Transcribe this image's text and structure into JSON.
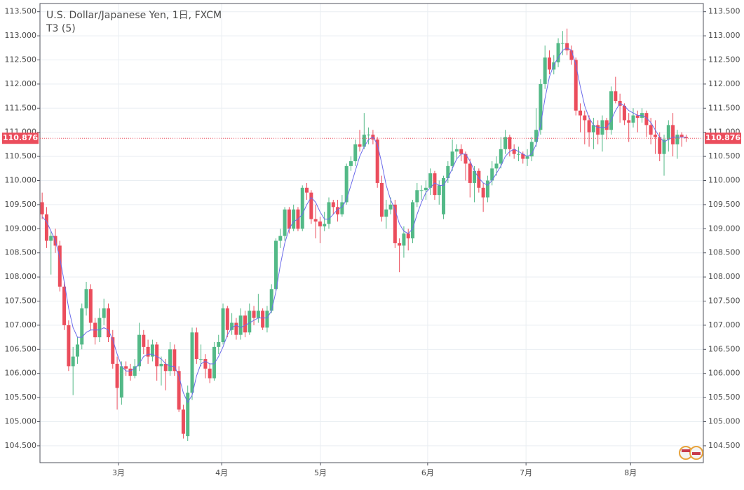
{
  "chart_data": {
    "type": "candlestick",
    "title": "U.S. Dollar/Japanese Yen, 1日, FXCM",
    "indicator": {
      "name": "T3 (5)",
      "color": "#6b6bea"
    },
    "up_color": "#53b987",
    "down_color": "#eb4d5c",
    "xlim": [
      -0.5,
      149.9
    ],
    "xticks": [
      {
        "value": 17.3,
        "label": "3月"
      },
      {
        "value": 40.7,
        "label": "4月"
      },
      {
        "value": 63.1,
        "label": "5月"
      },
      {
        "value": 87.4,
        "label": "6月"
      },
      {
        "value": 109.7,
        "label": "7月"
      },
      {
        "value": 133.4,
        "label": "8月"
      }
    ],
    "ylim": [
      104.15,
      113.67
    ],
    "yticks": [
      {
        "value": 104.5,
        "label": "104.500"
      },
      {
        "value": 105,
        "label": "105.000"
      },
      {
        "value": 105.5,
        "label": "105.500"
      },
      {
        "value": 106,
        "label": "106.000"
      },
      {
        "value": 106.5,
        "label": "106.500"
      },
      {
        "value": 107,
        "label": "107.000"
      },
      {
        "value": 107.5,
        "label": "107.500"
      },
      {
        "value": 108,
        "label": "108.000"
      },
      {
        "value": 108.5,
        "label": "108.500"
      },
      {
        "value": 109,
        "label": "109.000"
      },
      {
        "value": 109.5,
        "label": "109.500"
      },
      {
        "value": 110,
        "label": "110.000"
      },
      {
        "value": 110.5,
        "label": "110.500"
      },
      {
        "value": 111,
        "label": "111.000"
      },
      {
        "value": 111.5,
        "label": "111.500"
      },
      {
        "value": 112,
        "label": "112.000"
      },
      {
        "value": 112.5,
        "label": "112.500"
      },
      {
        "value": 113,
        "label": "113.000"
      },
      {
        "value": 113.5,
        "label": "113.500"
      }
    ],
    "grid": true,
    "last_price": {
      "value": 110.876,
      "label": "110.876",
      "color": "#eb4d5c"
    },
    "ohlc": [
      [
        109.55,
        109.75,
        109.2,
        109.3
      ],
      [
        109.3,
        109.45,
        108.6,
        108.75
      ],
      [
        108.75,
        108.95,
        108.05,
        108.85
      ],
      [
        108.85,
        109.0,
        108.5,
        108.65
      ],
      [
        108.65,
        108.75,
        107.7,
        107.8
      ],
      [
        107.8,
        107.9,
        106.9,
        107.0
      ],
      [
        107.0,
        107.1,
        106.05,
        106.15
      ],
      [
        106.15,
        106.55,
        105.55,
        106.35
      ],
      [
        106.35,
        106.75,
        106.2,
        106.6
      ],
      [
        106.6,
        107.45,
        106.5,
        107.35
      ],
      [
        107.35,
        107.9,
        107.2,
        107.75
      ],
      [
        107.75,
        107.85,
        106.9,
        107.05
      ],
      [
        107.05,
        107.15,
        106.6,
        106.75
      ],
      [
        106.75,
        107.35,
        106.65,
        107.15
      ],
      [
        107.15,
        107.55,
        107.0,
        107.35
      ],
      [
        107.35,
        107.45,
        106.65,
        106.75
      ],
      [
        106.75,
        106.9,
        106.1,
        106.2
      ],
      [
        106.2,
        106.35,
        105.25,
        105.7
      ],
      [
        105.5,
        106.25,
        105.35,
        106.15
      ],
      [
        106.15,
        106.25,
        105.95,
        106.1
      ],
      [
        106.1,
        106.2,
        105.85,
        105.95
      ],
      [
        105.95,
        106.3,
        105.9,
        106.15
      ],
      [
        106.15,
        107.05,
        106.05,
        106.8
      ],
      [
        106.8,
        106.9,
        106.4,
        106.55
      ],
      [
        106.55,
        106.7,
        106.2,
        106.35
      ],
      [
        106.35,
        106.7,
        106.25,
        106.6
      ],
      [
        106.6,
        106.65,
        105.85,
        106.15
      ],
      [
        106.15,
        106.35,
        105.75,
        106.2
      ],
      [
        106.2,
        106.3,
        105.65,
        106.05
      ],
      [
        106.05,
        106.65,
        105.95,
        106.5
      ],
      [
        106.5,
        106.6,
        105.95,
        106.05
      ],
      [
        106.05,
        106.15,
        105.2,
        105.25
      ],
      [
        105.25,
        105.35,
        104.65,
        104.75
      ],
      [
        104.7,
        105.75,
        104.6,
        105.6
      ],
      [
        105.6,
        106.95,
        105.45,
        106.85
      ],
      [
        106.85,
        106.95,
        106.2,
        106.3
      ],
      [
        106.3,
        106.6,
        106.15,
        106.3
      ],
      [
        106.3,
        106.4,
        105.9,
        106.1
      ],
      [
        106.1,
        106.2,
        105.8,
        105.9
      ],
      [
        105.9,
        106.65,
        105.85,
        106.55
      ],
      [
        106.55,
        106.8,
        106.4,
        106.65
      ],
      [
        106.65,
        107.45,
        106.6,
        107.35
      ],
      [
        107.35,
        107.4,
        106.75,
        106.9
      ],
      [
        106.9,
        107.25,
        106.8,
        107.05
      ],
      [
        107.05,
        107.15,
        106.7,
        106.8
      ],
      [
        106.8,
        107.35,
        106.7,
        107.2
      ],
      [
        107.2,
        107.3,
        106.75,
        106.85
      ],
      [
        106.85,
        107.45,
        106.8,
        107.3
      ],
      [
        107.3,
        107.4,
        107.0,
        107.15
      ],
      [
        107.15,
        107.65,
        107.05,
        107.3
      ],
      [
        107.3,
        107.35,
        106.9,
        106.95
      ],
      [
        106.95,
        107.4,
        106.85,
        107.3
      ],
      [
        107.3,
        107.85,
        107.25,
        107.75
      ],
      [
        107.75,
        108.8,
        107.7,
        108.75
      ],
      [
        108.75,
        109.0,
        108.6,
        108.85
      ],
      [
        108.85,
        109.45,
        108.75,
        109.4
      ],
      [
        109.4,
        109.45,
        108.9,
        109.0
      ],
      [
        109.0,
        109.5,
        108.95,
        109.4
      ],
      [
        109.4,
        109.45,
        108.95,
        109.0
      ],
      [
        109.0,
        109.9,
        108.95,
        109.85
      ],
      [
        109.85,
        109.95,
        109.6,
        109.75
      ],
      [
        109.75,
        109.8,
        109.1,
        109.2
      ],
      [
        109.2,
        109.5,
        108.8,
        109.15
      ],
      [
        109.15,
        109.25,
        108.7,
        109.05
      ],
      [
        109.05,
        109.35,
        108.95,
        109.1
      ],
      [
        109.1,
        109.65,
        109.0,
        109.55
      ],
      [
        109.55,
        109.6,
        109.3,
        109.45
      ],
      [
        109.45,
        109.6,
        109.15,
        109.3
      ],
      [
        109.3,
        109.7,
        109.25,
        109.55
      ],
      [
        109.55,
        110.35,
        109.5,
        110.3
      ],
      [
        110.3,
        110.5,
        110.2,
        110.4
      ],
      [
        110.4,
        110.85,
        110.3,
        110.75
      ],
      [
        110.75,
        111.05,
        110.6,
        110.7
      ],
      [
        110.7,
        111.4,
        110.65,
        110.95
      ],
      [
        110.95,
        111.1,
        110.75,
        110.95
      ],
      [
        110.95,
        111.05,
        110.75,
        110.85
      ],
      [
        110.85,
        110.9,
        109.85,
        109.95
      ],
      [
        109.95,
        110.1,
        109.15,
        109.25
      ],
      [
        109.25,
        109.6,
        109.0,
        109.4
      ],
      [
        109.4,
        109.65,
        109.3,
        109.5
      ],
      [
        109.5,
        109.6,
        108.6,
        108.7
      ],
      [
        108.7,
        108.8,
        108.1,
        108.65
      ],
      [
        108.65,
        109.05,
        108.4,
        108.9
      ],
      [
        108.9,
        109.0,
        108.55,
        108.8
      ],
      [
        108.8,
        109.6,
        108.7,
        109.55
      ],
      [
        109.55,
        109.95,
        109.45,
        109.8
      ],
      [
        109.8,
        109.9,
        109.6,
        109.8
      ],
      [
        109.8,
        110.0,
        109.6,
        109.85
      ],
      [
        109.85,
        110.25,
        109.7,
        110.15
      ],
      [
        110.15,
        110.2,
        109.6,
        109.7
      ],
      [
        109.7,
        110.0,
        109.5,
        109.9
      ],
      [
        109.3,
        110.1,
        109.2,
        110.05
      ],
      [
        110.05,
        110.4,
        109.95,
        110.3
      ],
      [
        110.3,
        110.85,
        110.2,
        110.6
      ],
      [
        110.6,
        110.75,
        110.45,
        110.65
      ],
      [
        110.65,
        110.75,
        110.4,
        110.55
      ],
      [
        110.55,
        110.6,
        110.0,
        110.35
      ],
      [
        110.35,
        110.45,
        109.65,
        109.95
      ],
      [
        109.95,
        110.3,
        109.55,
        110.2
      ],
      [
        110.2,
        110.25,
        109.75,
        109.85
      ],
      [
        109.85,
        109.95,
        109.35,
        109.65
      ],
      [
        109.65,
        110.1,
        109.55,
        110.0
      ],
      [
        110.0,
        110.4,
        109.9,
        110.25
      ],
      [
        110.25,
        110.5,
        110.1,
        110.35
      ],
      [
        110.35,
        110.9,
        110.25,
        110.65
      ],
      [
        110.65,
        111.05,
        110.55,
        110.9
      ],
      [
        110.9,
        110.95,
        110.5,
        110.65
      ],
      [
        110.65,
        110.75,
        110.45,
        110.55
      ],
      [
        110.55,
        110.7,
        110.4,
        110.55
      ],
      [
        110.55,
        110.6,
        110.35,
        110.45
      ],
      [
        110.45,
        110.65,
        110.3,
        110.5
      ],
      [
        110.5,
        110.9,
        110.4,
        110.8
      ],
      [
        110.8,
        111.5,
        110.7,
        111.05
      ],
      [
        111.05,
        112.1,
        110.95,
        112.0
      ],
      [
        112.0,
        112.8,
        111.9,
        112.55
      ],
      [
        112.55,
        112.7,
        112.2,
        112.3
      ],
      [
        112.3,
        112.6,
        112.2,
        112.45
      ],
      [
        112.45,
        112.95,
        112.35,
        112.85
      ],
      [
        112.85,
        113.1,
        112.6,
        112.85
      ],
      [
        112.85,
        113.15,
        112.6,
        112.7
      ],
      [
        112.7,
        112.8,
        112.4,
        112.5
      ],
      [
        112.5,
        112.55,
        111.35,
        111.45
      ],
      [
        111.45,
        111.6,
        111.0,
        111.35
      ],
      [
        111.35,
        111.45,
        110.75,
        111.25
      ],
      [
        111.25,
        111.35,
        110.7,
        111.0
      ],
      [
        111.0,
        111.3,
        110.65,
        111.15
      ],
      [
        111.15,
        111.25,
        110.75,
        110.95
      ],
      [
        110.95,
        111.35,
        110.6,
        111.25
      ],
      [
        111.25,
        111.3,
        110.85,
        111.05
      ],
      [
        111.05,
        111.95,
        110.95,
        111.85
      ],
      [
        111.85,
        112.15,
        111.6,
        111.65
      ],
      [
        111.65,
        111.8,
        111.2,
        111.55
      ],
      [
        111.55,
        111.6,
        111.15,
        111.25
      ],
      [
        111.25,
        111.4,
        110.8,
        111.2
      ],
      [
        111.2,
        111.5,
        111.1,
        111.35
      ],
      [
        111.35,
        111.45,
        111.0,
        111.3
      ],
      [
        111.3,
        111.5,
        111.2,
        111.4
      ],
      [
        111.4,
        111.45,
        110.9,
        111.15
      ],
      [
        111.15,
        111.3,
        110.75,
        110.95
      ],
      [
        110.95,
        111.25,
        110.55,
        110.9
      ],
      [
        110.9,
        111.0,
        110.4,
        110.55
      ],
      [
        110.55,
        110.95,
        110.1,
        110.85
      ],
      [
        110.85,
        111.25,
        110.6,
        111.15
      ],
      [
        111.15,
        111.4,
        110.5,
        110.75
      ],
      [
        110.75,
        111.05,
        110.45,
        110.95
      ],
      [
        110.95,
        111.0,
        110.7,
        110.9
      ],
      [
        110.9,
        110.95,
        110.8,
        110.876
      ]
    ],
    "t3": [
      109.25,
      109.15,
      108.95,
      108.75,
      108.4,
      107.9,
      107.35,
      106.95,
      106.75,
      106.75,
      106.85,
      106.9,
      106.9,
      106.9,
      106.95,
      106.9,
      106.7,
      106.4,
      106.15,
      106.05,
      106.05,
      106.1,
      106.2,
      106.35,
      106.4,
      106.4,
      106.35,
      106.3,
      106.2,
      106.15,
      106.15,
      105.95,
      105.6,
      105.4,
      105.55,
      105.95,
      106.2,
      106.25,
      106.2,
      106.2,
      106.35,
      106.55,
      106.8,
      106.95,
      107.0,
      106.95,
      107.0,
      107.05,
      107.1,
      107.15,
      107.15,
      107.15,
      107.3,
      107.7,
      108.25,
      108.7,
      109.0,
      109.15,
      109.2,
      109.3,
      109.5,
      109.65,
      109.55,
      109.35,
      109.2,
      109.2,
      109.3,
      109.4,
      109.45,
      109.6,
      109.9,
      110.2,
      110.5,
      110.7,
      110.85,
      110.9,
      110.75,
      110.35,
      109.9,
      109.6,
      109.4,
      109.1,
      108.95,
      108.9,
      109.0,
      109.3,
      109.55,
      109.75,
      109.85,
      109.95,
      109.9,
      109.9,
      110.05,
      110.25,
      110.45,
      110.55,
      110.55,
      110.4,
      110.2,
      110.05,
      109.95,
      109.9,
      110.0,
      110.15,
      110.3,
      110.5,
      110.6,
      110.65,
      110.6,
      110.55,
      110.5,
      110.55,
      110.75,
      111.15,
      111.7,
      112.15,
      112.4,
      112.55,
      112.7,
      112.75,
      112.7,
      112.4,
      111.95,
      111.55,
      111.3,
      111.15,
      111.1,
      111.1,
      111.1,
      111.25,
      111.45,
      111.6,
      111.55,
      111.45,
      111.4,
      111.35,
      111.35,
      111.3,
      111.2,
      111.05,
      110.9,
      110.8,
      110.85,
      110.9,
      110.9,
      110.9,
      110.9
    ]
  }
}
